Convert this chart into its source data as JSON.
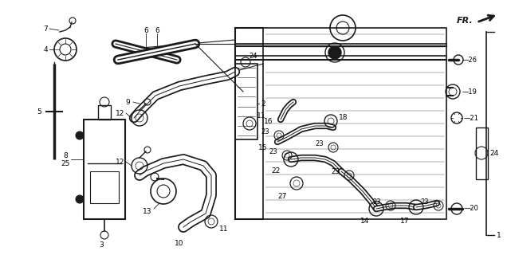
{
  "bg_color": "#ffffff",
  "line_color": "#1a1a1a",
  "figsize": [
    6.36,
    3.2
  ],
  "dpi": 100,
  "coord_system": "pixels_636x320"
}
